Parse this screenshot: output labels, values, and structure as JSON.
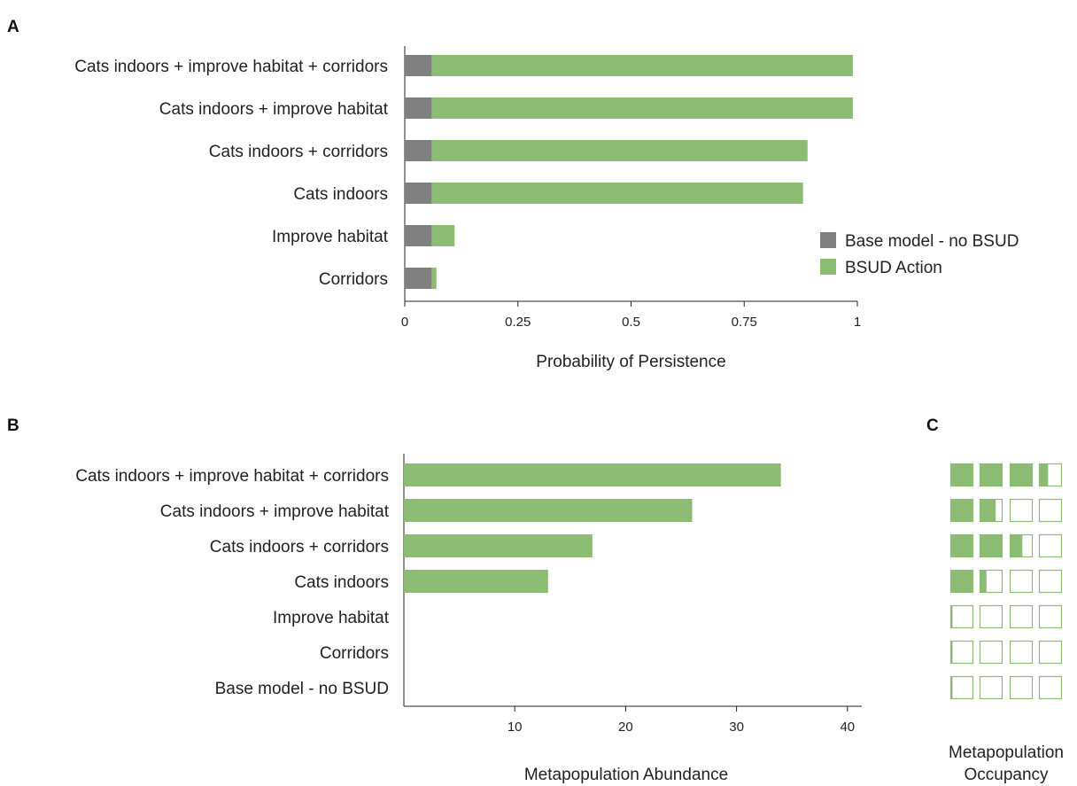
{
  "chart_data": [
    {
      "panel": "A",
      "type": "bar",
      "orientation": "horizontal",
      "stacked": true,
      "categories": [
        "Cats indoors + improve habitat + corridors",
        "Cats indoors + improve habitat",
        "Cats indoors + corridors",
        "Cats indoors",
        "Improve habitat",
        "Corridors"
      ],
      "series": [
        {
          "name": "Base model - no BSUD",
          "color": "#808080",
          "values": [
            0.06,
            0.06,
            0.06,
            0.06,
            0.06,
            0.06
          ]
        },
        {
          "name": "BSUD Action",
          "color": "#8cbc73",
          "values": [
            0.93,
            0.93,
            0.83,
            0.82,
            0.05,
            0.01
          ]
        }
      ],
      "xlabel": "Probability of Persistence",
      "xlim": [
        0,
        1
      ],
      "xticks": [
        "0",
        "0.25",
        "0.5",
        "0.75",
        "1"
      ],
      "xtick_values": [
        0,
        0.25,
        0.5,
        0.75,
        1
      ],
      "legend_position": "right"
    },
    {
      "panel": "B",
      "type": "bar",
      "orientation": "horizontal",
      "categories": [
        "Cats indoors + improve habitat + corridors",
        "Cats indoors + improve habitat",
        "Cats indoors + corridors",
        "Cats indoors",
        "Improve habitat",
        "Corridors",
        "Base model - no BSUD"
      ],
      "series": [
        {
          "color": "#8cbc73",
          "values": [
            34,
            26,
            17,
            13,
            0,
            0,
            0
          ]
        }
      ],
      "xlabel": "Metapopulation Abundance",
      "xlim": [
        0,
        41
      ],
      "xticks": [
        "10",
        "20",
        "30",
        "40"
      ],
      "xtick_values": [
        10,
        20,
        30,
        40
      ]
    },
    {
      "panel": "C",
      "type": "table",
      "description_role": "occupancy boxes, 4 per row, fill fraction per box",
      "rows": [
        [
          1,
          1,
          1,
          0.4
        ],
        [
          1,
          0.7,
          0,
          0
        ],
        [
          1,
          1,
          0.55,
          0
        ],
        [
          1,
          0.3,
          0,
          0
        ],
        [
          0.08,
          0,
          0,
          0
        ],
        [
          0.08,
          0,
          0,
          0
        ],
        [
          0.08,
          0,
          0,
          0
        ]
      ],
      "xlabel_lines": [
        "Metapopulation",
        "Occupancy"
      ]
    }
  ],
  "colors": {
    "green": "#8cbc73",
    "grey": "#808080",
    "axis": "#222222"
  }
}
